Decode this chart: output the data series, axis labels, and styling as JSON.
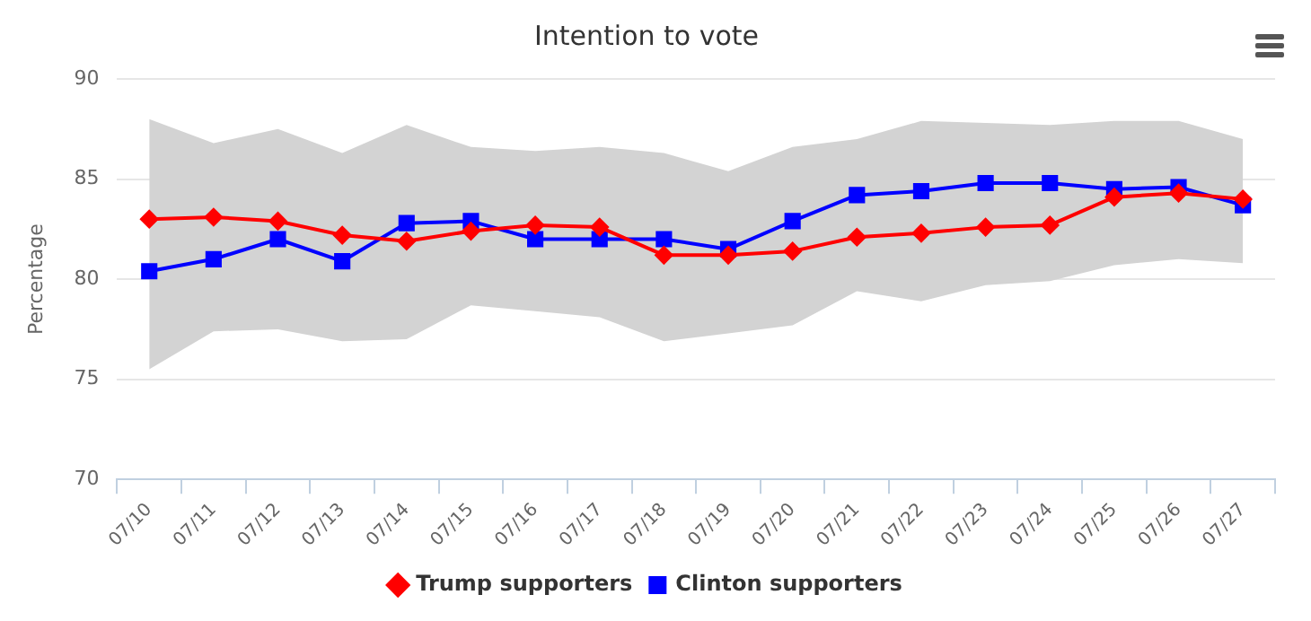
{
  "chart_data": {
    "type": "line",
    "title": "Intention to vote",
    "ylabel": "Percentage",
    "categories": [
      "07/10",
      "07/11",
      "07/12",
      "07/13",
      "07/14",
      "07/15",
      "07/16",
      "07/17",
      "07/18",
      "07/19",
      "07/20",
      "07/21",
      "07/22",
      "07/23",
      "07/24",
      "07/25",
      "07/26",
      "07/27"
    ],
    "series": [
      {
        "type": "area",
        "color": "#d3d3d3",
        "values": [
          null,
          null,
          null,
          null,
          null,
          null,
          null,
          null,
          null,
          null,
          null,
          null,
          null,
          null,
          null,
          null,
          null,
          null
        ],
        "lower": [
          75.5,
          77.4,
          77.5,
          76.9,
          77.0,
          78.7,
          78.4,
          78.1,
          76.9,
          77.3,
          77.7,
          79.4,
          78.9,
          79.7,
          79.9,
          80.7,
          81.0,
          80.8
        ],
        "upper": [
          88.0,
          86.8,
          87.5,
          86.3,
          87.7,
          86.6,
          86.4,
          86.6,
          86.3,
          85.4,
          86.6,
          87.0,
          87.9,
          87.8,
          87.7,
          87.9,
          87.9,
          87.0
        ]
      },
      {
        "name": "Trump supporters",
        "color": "#ff0000",
        "marker": "diamond",
        "values": [
          83.0,
          83.1,
          82.9,
          82.2,
          81.9,
          82.4,
          82.7,
          82.6,
          81.2,
          81.2,
          81.4,
          82.1,
          82.3,
          82.6,
          82.7,
          84.1,
          84.3,
          84.0
        ]
      },
      {
        "name": "Clinton supporters",
        "color": "#0000ff",
        "marker": "square",
        "values": [
          80.4,
          81.0,
          82.0,
          80.9,
          82.8,
          82.9,
          82.0,
          82.0,
          82.0,
          81.5,
          82.9,
          84.2,
          84.4,
          84.8,
          84.8,
          84.5,
          84.6,
          83.7
        ]
      }
    ],
    "ylim": [
      70,
      90
    ],
    "yticks": [
      70,
      75,
      80,
      85,
      90
    ],
    "grid": "y",
    "legend": "bottom",
    "line_style": "solid"
  }
}
